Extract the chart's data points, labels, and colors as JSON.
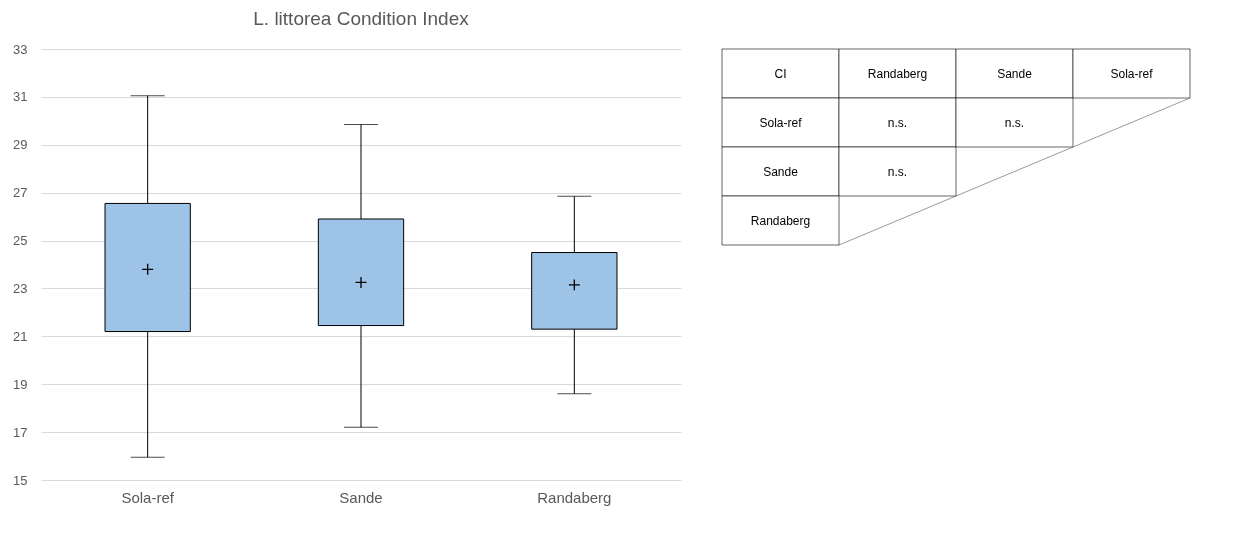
{
  "chart_data": [
    {
      "type": "box",
      "title": "L. littorea Condition Index",
      "categories": [
        "Sola-ref",
        "Sande",
        "Randaberg"
      ],
      "ylim": [
        15,
        33
      ],
      "yticks": [
        15,
        17,
        19,
        21,
        23,
        25,
        27,
        29,
        31,
        33
      ],
      "grid": "y",
      "marker": "cross",
      "series": [
        {
          "color": "#9dc3e6",
          "boxes": [
            {
              "low": 15.95,
              "q1": 21.2,
              "median": null,
              "q3": 26.55,
              "high": 31.05,
              "mean": 23.8
            },
            {
              "low": 17.2,
              "q1": 21.45,
              "median": null,
              "q3": 25.9,
              "high": 29.85,
              "mean": 23.25
            },
            {
              "low": 18.6,
              "q1": 21.3,
              "median": null,
              "q3": 24.5,
              "high": 26.85,
              "mean": 23.15
            }
          ]
        }
      ]
    },
    {
      "type": "other",
      "annotations": [
        "CI"
      ],
      "categories": [
        "Randaberg",
        "Sande",
        "Sola-ref"
      ],
      "y_categories": [
        "Sola-ref",
        "Sande",
        "Randaberg"
      ],
      "cell_labels": [
        [
          "n.s.",
          "n.s.",
          null
        ],
        [
          "n.s.",
          null,
          null
        ],
        [
          null,
          null,
          null
        ]
      ]
    }
  ]
}
